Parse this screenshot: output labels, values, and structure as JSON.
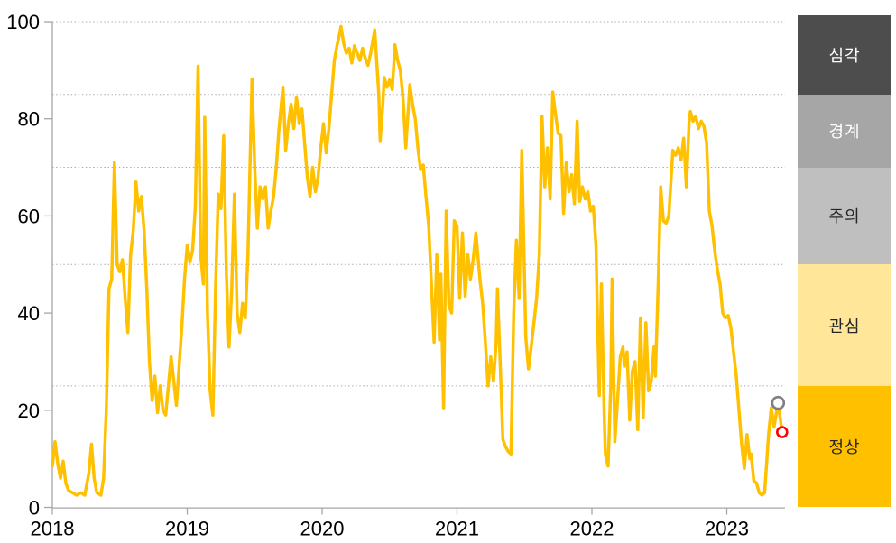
{
  "chart_data": {
    "type": "line",
    "title": "",
    "x_axis": {
      "ticks": [
        "2018",
        "2019",
        "2020",
        "2021",
        "2022",
        "2023"
      ],
      "range": [
        2018,
        2023.45
      ]
    },
    "y_axis": {
      "ticks": [
        "0",
        "20",
        "40",
        "60",
        "80",
        "100"
      ],
      "range": [
        0,
        100
      ],
      "gridlines": [
        100,
        85,
        70,
        50,
        25
      ]
    },
    "grid": "dotted horizontal lines at 25, 50, 70, 85, 100",
    "series": [
      {
        "name": "index-line",
        "color": "#FFC000",
        "points": [
          [
            2018.0,
            8.5
          ],
          [
            2018.02,
            13.5
          ],
          [
            2018.04,
            9
          ],
          [
            2018.06,
            6
          ],
          [
            2018.08,
            9.5
          ],
          [
            2018.1,
            5
          ],
          [
            2018.12,
            3.5
          ],
          [
            2018.15,
            3
          ],
          [
            2018.18,
            2.5
          ],
          [
            2018.21,
            3
          ],
          [
            2018.24,
            2.5
          ],
          [
            2018.27,
            7
          ],
          [
            2018.29,
            13
          ],
          [
            2018.31,
            6
          ],
          [
            2018.33,
            3
          ],
          [
            2018.36,
            2.5
          ],
          [
            2018.38,
            6
          ],
          [
            2018.4,
            20
          ],
          [
            2018.42,
            45
          ],
          [
            2018.44,
            47
          ],
          [
            2018.46,
            71
          ],
          [
            2018.48,
            50
          ],
          [
            2018.5,
            48.5
          ],
          [
            2018.52,
            51
          ],
          [
            2018.54,
            43
          ],
          [
            2018.56,
            36
          ],
          [
            2018.58,
            52
          ],
          [
            2018.6,
            57
          ],
          [
            2018.62,
            67
          ],
          [
            2018.64,
            61
          ],
          [
            2018.66,
            64
          ],
          [
            2018.68,
            57
          ],
          [
            2018.7,
            45
          ],
          [
            2018.72,
            30
          ],
          [
            2018.74,
            22
          ],
          [
            2018.76,
            27
          ],
          [
            2018.78,
            19.5
          ],
          [
            2018.8,
            25
          ],
          [
            2018.82,
            20
          ],
          [
            2018.84,
            19
          ],
          [
            2018.86,
            25
          ],
          [
            2018.88,
            31
          ],
          [
            2018.9,
            26
          ],
          [
            2018.92,
            21
          ],
          [
            2018.94,
            29
          ],
          [
            2018.96,
            37
          ],
          [
            2018.98,
            47
          ],
          [
            2019.0,
            54
          ],
          [
            2019.02,
            50.5
          ],
          [
            2019.04,
            53
          ],
          [
            2019.06,
            62
          ],
          [
            2019.08,
            90.8
          ],
          [
            2019.1,
            52
          ],
          [
            2019.12,
            46
          ],
          [
            2019.13,
            80.3
          ],
          [
            2019.15,
            40
          ],
          [
            2019.17,
            24
          ],
          [
            2019.19,
            19
          ],
          [
            2019.21,
            45
          ],
          [
            2019.23,
            64.5
          ],
          [
            2019.25,
            61.5
          ],
          [
            2019.27,
            76.5
          ],
          [
            2019.29,
            48
          ],
          [
            2019.31,
            33
          ],
          [
            2019.33,
            45
          ],
          [
            2019.35,
            64.5
          ],
          [
            2019.37,
            40
          ],
          [
            2019.39,
            36
          ],
          [
            2019.41,
            42
          ],
          [
            2019.43,
            39
          ],
          [
            2019.45,
            52
          ],
          [
            2019.48,
            88.2
          ],
          [
            2019.5,
            70
          ],
          [
            2019.52,
            57.5
          ],
          [
            2019.54,
            66
          ],
          [
            2019.56,
            63.5
          ],
          [
            2019.58,
            66
          ],
          [
            2019.6,
            57.5
          ],
          [
            2019.62,
            61
          ],
          [
            2019.64,
            64
          ],
          [
            2019.66,
            70
          ],
          [
            2019.68,
            78
          ],
          [
            2019.71,
            86.5
          ],
          [
            2019.73,
            73.5
          ],
          [
            2019.75,
            79
          ],
          [
            2019.77,
            83
          ],
          [
            2019.79,
            78
          ],
          [
            2019.81,
            84.5
          ],
          [
            2019.83,
            79
          ],
          [
            2019.85,
            82
          ],
          [
            2019.87,
            75
          ],
          [
            2019.89,
            68
          ],
          [
            2019.91,
            64
          ],
          [
            2019.93,
            70
          ],
          [
            2019.95,
            65
          ],
          [
            2019.97,
            68
          ],
          [
            2019.99,
            74
          ],
          [
            2020.01,
            79
          ],
          [
            2020.03,
            73
          ],
          [
            2020.05,
            78
          ],
          [
            2020.07,
            85
          ],
          [
            2020.09,
            92
          ],
          [
            2020.11,
            95
          ],
          [
            2020.13,
            97.5
          ],
          [
            2020.14,
            99
          ],
          [
            2020.16,
            95.5
          ],
          [
            2020.18,
            93.5
          ],
          [
            2020.2,
            94.5
          ],
          [
            2020.22,
            91.5
          ],
          [
            2020.24,
            95
          ],
          [
            2020.26,
            93.5
          ],
          [
            2020.28,
            92
          ],
          [
            2020.3,
            94.5
          ],
          [
            2020.32,
            92.5
          ],
          [
            2020.34,
            91
          ],
          [
            2020.36,
            93.5
          ],
          [
            2020.39,
            98.3
          ],
          [
            2020.42,
            85
          ],
          [
            2020.43,
            75.5
          ],
          [
            2020.45,
            83
          ],
          [
            2020.46,
            88.5
          ],
          [
            2020.48,
            86.5
          ],
          [
            2020.5,
            88
          ],
          [
            2020.52,
            86
          ],
          [
            2020.54,
            95.2
          ],
          [
            2020.56,
            92
          ],
          [
            2020.58,
            90
          ],
          [
            2020.6,
            84
          ],
          [
            2020.62,
            74
          ],
          [
            2020.65,
            87
          ],
          [
            2020.67,
            83
          ],
          [
            2020.69,
            80
          ],
          [
            2020.71,
            74
          ],
          [
            2020.73,
            69.5
          ],
          [
            2020.75,
            70.5
          ],
          [
            2020.77,
            64
          ],
          [
            2020.79,
            58
          ],
          [
            2020.81,
            46
          ],
          [
            2020.83,
            34
          ],
          [
            2020.85,
            52
          ],
          [
            2020.87,
            34.5
          ],
          [
            2020.88,
            48
          ],
          [
            2020.9,
            20.5
          ],
          [
            2020.92,
            61
          ],
          [
            2020.94,
            41.5
          ],
          [
            2020.96,
            40
          ],
          [
            2020.98,
            59
          ],
          [
            2021.0,
            58
          ],
          [
            2021.02,
            43
          ],
          [
            2021.04,
            56.5
          ],
          [
            2021.06,
            43.5
          ],
          [
            2021.08,
            52
          ],
          [
            2021.1,
            47
          ],
          [
            2021.12,
            51
          ],
          [
            2021.14,
            56.5
          ],
          [
            2021.17,
            47
          ],
          [
            2021.19,
            42
          ],
          [
            2021.21,
            34
          ],
          [
            2021.23,
            25
          ],
          [
            2021.25,
            31
          ],
          [
            2021.27,
            26
          ],
          [
            2021.29,
            34
          ],
          [
            2021.3,
            45
          ],
          [
            2021.32,
            30
          ],
          [
            2021.34,
            14
          ],
          [
            2021.36,
            12.5
          ],
          [
            2021.38,
            11.5
          ],
          [
            2021.4,
            11
          ],
          [
            2021.42,
            40
          ],
          [
            2021.44,
            55
          ],
          [
            2021.46,
            43
          ],
          [
            2021.48,
            73.5
          ],
          [
            2021.51,
            35
          ],
          [
            2021.53,
            28.5
          ],
          [
            2021.55,
            33
          ],
          [
            2021.57,
            38
          ],
          [
            2021.59,
            43
          ],
          [
            2021.61,
            52
          ],
          [
            2021.63,
            80.5
          ],
          [
            2021.65,
            66
          ],
          [
            2021.67,
            74
          ],
          [
            2021.69,
            63.5
          ],
          [
            2021.71,
            85.5
          ],
          [
            2021.73,
            81
          ],
          [
            2021.75,
            77
          ],
          [
            2021.77,
            76.5
          ],
          [
            2021.79,
            60.5
          ],
          [
            2021.81,
            71
          ],
          [
            2021.83,
            65
          ],
          [
            2021.85,
            68.5
          ],
          [
            2021.87,
            62.5
          ],
          [
            2021.89,
            79.5
          ],
          [
            2021.91,
            63
          ],
          [
            2021.93,
            66
          ],
          [
            2021.95,
            63.5
          ],
          [
            2021.97,
            65
          ],
          [
            2021.99,
            61
          ],
          [
            2022.01,
            62
          ],
          [
            2022.03,
            54
          ],
          [
            2022.04,
            40
          ],
          [
            2022.055,
            23
          ],
          [
            2022.07,
            46
          ],
          [
            2022.09,
            20
          ],
          [
            2022.1,
            11
          ],
          [
            2022.12,
            8.5
          ],
          [
            2022.14,
            25
          ],
          [
            2022.15,
            47
          ],
          [
            2022.17,
            13.5
          ],
          [
            2022.19,
            22
          ],
          [
            2022.21,
            31
          ],
          [
            2022.23,
            33
          ],
          [
            2022.24,
            29
          ],
          [
            2022.26,
            32
          ],
          [
            2022.28,
            18
          ],
          [
            2022.3,
            28
          ],
          [
            2022.32,
            30
          ],
          [
            2022.34,
            16
          ],
          [
            2022.36,
            39
          ],
          [
            2022.38,
            18.5
          ],
          [
            2022.4,
            38
          ],
          [
            2022.42,
            24
          ],
          [
            2022.44,
            26
          ],
          [
            2022.46,
            33
          ],
          [
            2022.47,
            27
          ],
          [
            2022.49,
            45
          ],
          [
            2022.51,
            66
          ],
          [
            2022.53,
            59
          ],
          [
            2022.55,
            58.5
          ],
          [
            2022.57,
            60
          ],
          [
            2022.6,
            73.5
          ],
          [
            2022.62,
            72.5
          ],
          [
            2022.64,
            74
          ],
          [
            2022.66,
            71.5
          ],
          [
            2022.68,
            76
          ],
          [
            2022.7,
            66
          ],
          [
            2022.72,
            79
          ],
          [
            2022.73,
            81.5
          ],
          [
            2022.75,
            79.5
          ],
          [
            2022.77,
            80.5
          ],
          [
            2022.79,
            78
          ],
          [
            2022.81,
            79.5
          ],
          [
            2022.83,
            78.5
          ],
          [
            2022.85,
            75
          ],
          [
            2022.87,
            61
          ],
          [
            2022.89,
            58
          ],
          [
            2022.91,
            53
          ],
          [
            2022.93,
            49
          ],
          [
            2022.95,
            46
          ],
          [
            2022.97,
            40
          ],
          [
            2022.99,
            39
          ],
          [
            2023.01,
            39.5
          ],
          [
            2023.03,
            37
          ],
          [
            2023.05,
            32
          ],
          [
            2023.07,
            27
          ],
          [
            2023.09,
            20
          ],
          [
            2023.11,
            13
          ],
          [
            2023.13,
            8
          ],
          [
            2023.15,
            15
          ],
          [
            2023.17,
            10
          ],
          [
            2023.18,
            11
          ],
          [
            2023.2,
            5.5
          ],
          [
            2023.22,
            5
          ],
          [
            2023.24,
            3
          ],
          [
            2023.26,
            2.5
          ],
          [
            2023.28,
            3
          ],
          [
            2023.31,
            15
          ],
          [
            2023.33,
            20.5
          ],
          [
            2023.35,
            16.5
          ],
          [
            2023.38,
            21.5
          ],
          [
            2023.41,
            15.5
          ]
        ]
      }
    ],
    "markers": [
      {
        "name": "previous-value-marker",
        "shape": "hollow-circle",
        "color": "#808080",
        "x": 2023.38,
        "y": 21.5
      },
      {
        "name": "latest-value-marker",
        "shape": "hollow-circle",
        "color": "#FF0000",
        "x": 2023.41,
        "y": 15.5
      }
    ],
    "legend_bands": [
      {
        "label": "심각",
        "color": "#4D4D4D",
        "text_color": "#FFFFFF",
        "from": 85,
        "to": 100
      },
      {
        "label": "경계",
        "color": "#A6A6A6",
        "text_color": "#FFFFFF",
        "from": 70,
        "to": 85
      },
      {
        "label": "주의",
        "color": "#BFBFBF",
        "text_color": "#262626",
        "from": 50,
        "to": 70
      },
      {
        "label": "관심",
        "color": "#FFE699",
        "text_color": "#262626",
        "from": 25,
        "to": 50
      },
      {
        "label": "정상",
        "color": "#FFC000",
        "text_color": "#262626",
        "from": 0,
        "to": 25
      }
    ],
    "colors": {
      "line": "#FFC000",
      "grid": "#ADADAD",
      "axis": "#A6A6A6",
      "tick_text": "#000000"
    }
  }
}
